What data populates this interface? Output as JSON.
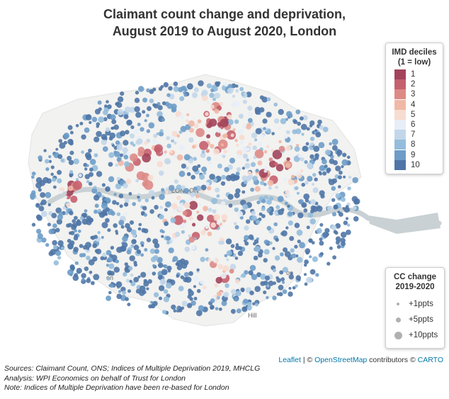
{
  "title": {
    "line1": "Claimant count change and deprivation,",
    "line2": "August 2019 to August 2020, London"
  },
  "map": {
    "labels": [
      "LONDON",
      "on",
      "Hill",
      "on"
    ],
    "colors": {
      "1": "#a2445b",
      "2": "#c5606e",
      "3": "#dd8a86",
      "4": "#f0b8a6",
      "5": "#f7dcd0",
      "6": "#e8eef7",
      "7": "#c3d7ea",
      "8": "#94bcdc",
      "9": "#6d9cc8",
      "10": "#4f76a6"
    },
    "water_color": "#c9d1d4",
    "land_color": "#f2f2f0"
  },
  "legend_imd": {
    "title_line1": "IMD deciles",
    "title_line2": "(1 = low)",
    "items": [
      "1",
      "2",
      "3",
      "4",
      "5",
      "6",
      "7",
      "8",
      "9",
      "10"
    ]
  },
  "legend_cc": {
    "title_line1": "CC change",
    "title_line2": "2019-2020",
    "items": [
      "+1ppts",
      "+5ppts",
      "+10ppts"
    ]
  },
  "attribution": {
    "leaflet": "Leaflet",
    "sep1": " | © ",
    "osm": "OpenStreetMap",
    "mid": " contributors © ",
    "carto": "CARTO"
  },
  "notes": {
    "line1": "Sources: Claimant Count, ONS; Indices of Multiple Deprivation 2019, MHCLG",
    "line2": "Analysis: WPI Economics on behalf of Trust for London",
    "line3": "Note: Indices of Multiple Deprivation have been re-based for London"
  }
}
